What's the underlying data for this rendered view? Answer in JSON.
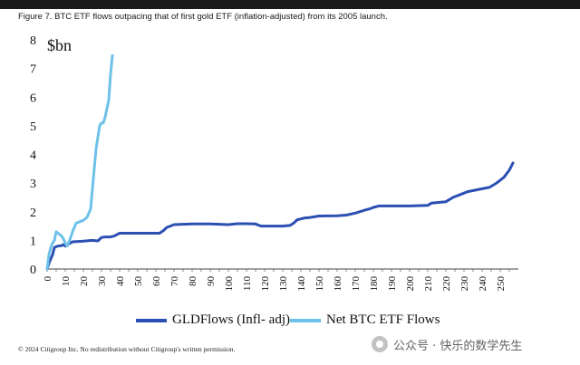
{
  "figure_title": "Figure 7. BTC ETF flows outpacing that of first gold ETF (inflation-adjusted) from its 2005 launch.",
  "unit_label": "$bn",
  "copyright": "© 2024 Citigroup Inc. No redistribution without Citigroup's written permission.",
  "watermark": "公众号 · 快乐的数学先生",
  "chart_data": {
    "type": "line",
    "x": [
      0,
      260
    ],
    "xlim": [
      0,
      260
    ],
    "ylim": [
      0,
      8
    ],
    "x_ticks": [
      0,
      5,
      10,
      15,
      20,
      25,
      30,
      35,
      40,
      45,
      50,
      55,
      60,
      65,
      70,
      75,
      80,
      85,
      90,
      95,
      100,
      105,
      110,
      115,
      120,
      125,
      130,
      135,
      140,
      145,
      150,
      155,
      160,
      165,
      170,
      175,
      180,
      185,
      190,
      195,
      200,
      205,
      210,
      215,
      220,
      225,
      230,
      235,
      240,
      245,
      250,
      255
    ],
    "x_tick_labels": [
      "0",
      "",
      "10",
      "",
      "20",
      "",
      "30",
      "",
      "40",
      "",
      "50",
      "",
      "60",
      "",
      "70",
      "",
      "80",
      "",
      "90",
      "",
      "100",
      "",
      "110",
      "",
      "120",
      "",
      "130",
      "",
      "140",
      "",
      "150",
      "",
      "160",
      "",
      "170",
      "",
      "180",
      "",
      "190",
      "",
      "200",
      "",
      "210",
      "",
      "220",
      "",
      "230",
      "",
      "240",
      "",
      "250",
      ""
    ],
    "y_ticks": [
      0,
      1,
      2,
      3,
      4,
      5,
      6,
      7,
      8
    ],
    "y_tick_labels": [
      "0",
      "1",
      "2",
      "3",
      "4",
      "5",
      "6",
      "7",
      "8"
    ],
    "grid": false,
    "legend_position": "bottom",
    "series": [
      {
        "name": "GLDFlows (Infl- adj)",
        "color": "#2b4fb3",
        "points": [
          [
            0,
            0
          ],
          [
            1,
            0.2
          ],
          [
            2,
            0.35
          ],
          [
            3,
            0.5
          ],
          [
            4,
            0.75
          ],
          [
            5,
            0.78
          ],
          [
            6,
            0.8
          ],
          [
            8,
            0.82
          ],
          [
            9,
            0.85
          ],
          [
            10,
            0.8
          ],
          [
            12,
            0.88
          ],
          [
            14,
            0.95
          ],
          [
            20,
            0.97
          ],
          [
            25,
            1.0
          ],
          [
            28,
            0.98
          ],
          [
            30,
            1.1
          ],
          [
            32,
            1.12
          ],
          [
            35,
            1.12
          ],
          [
            37,
            1.15
          ],
          [
            40,
            1.25
          ],
          [
            50,
            1.25
          ],
          [
            58,
            1.25
          ],
          [
            62,
            1.25
          ],
          [
            64,
            1.33
          ],
          [
            66,
            1.45
          ],
          [
            68,
            1.5
          ],
          [
            70,
            1.55
          ],
          [
            80,
            1.57
          ],
          [
            90,
            1.57
          ],
          [
            100,
            1.55
          ],
          [
            105,
            1.58
          ],
          [
            110,
            1.58
          ],
          [
            115,
            1.57
          ],
          [
            118,
            1.5
          ],
          [
            125,
            1.5
          ],
          [
            130,
            1.5
          ],
          [
            134,
            1.52
          ],
          [
            136,
            1.6
          ],
          [
            138,
            1.72
          ],
          [
            140,
            1.75
          ],
          [
            142,
            1.78
          ],
          [
            145,
            1.8
          ],
          [
            150,
            1.85
          ],
          [
            160,
            1.86
          ],
          [
            165,
            1.88
          ],
          [
            170,
            1.95
          ],
          [
            175,
            2.05
          ],
          [
            178,
            2.1
          ],
          [
            180,
            2.15
          ],
          [
            183,
            2.2
          ],
          [
            190,
            2.2
          ],
          [
            200,
            2.2
          ],
          [
            210,
            2.22
          ],
          [
            212,
            2.3
          ],
          [
            220,
            2.35
          ],
          [
            224,
            2.5
          ],
          [
            228,
            2.6
          ],
          [
            232,
            2.7
          ],
          [
            236,
            2.75
          ],
          [
            240,
            2.8
          ],
          [
            244,
            2.85
          ],
          [
            248,
            3.0
          ],
          [
            252,
            3.2
          ],
          [
            255,
            3.45
          ],
          [
            257,
            3.7
          ]
        ]
      },
      {
        "name": "Net BTC ETF Flows",
        "color": "#6ec1e8",
        "points": [
          [
            0,
            0
          ],
          [
            1,
            0.5
          ],
          [
            2,
            0.75
          ],
          [
            3,
            0.9
          ],
          [
            4,
            1.0
          ],
          [
            5,
            1.3
          ],
          [
            6,
            1.25
          ],
          [
            7,
            1.2
          ],
          [
            8,
            1.15
          ],
          [
            9,
            1.05
          ],
          [
            10,
            0.9
          ],
          [
            11,
            0.8
          ],
          [
            12,
            0.95
          ],
          [
            13,
            1.1
          ],
          [
            14,
            1.3
          ],
          [
            15,
            1.45
          ],
          [
            16,
            1.6
          ],
          [
            18,
            1.65
          ],
          [
            20,
            1.7
          ],
          [
            22,
            1.8
          ],
          [
            24,
            2.1
          ],
          [
            25,
            2.8
          ],
          [
            26,
            3.5
          ],
          [
            27,
            4.2
          ],
          [
            28,
            4.6
          ],
          [
            29,
            5.0
          ],
          [
            30,
            5.1
          ],
          [
            31,
            5.1
          ],
          [
            32,
            5.3
          ],
          [
            33,
            5.6
          ],
          [
            34,
            5.9
          ],
          [
            35,
            6.8
          ],
          [
            36,
            7.45
          ]
        ]
      }
    ]
  }
}
